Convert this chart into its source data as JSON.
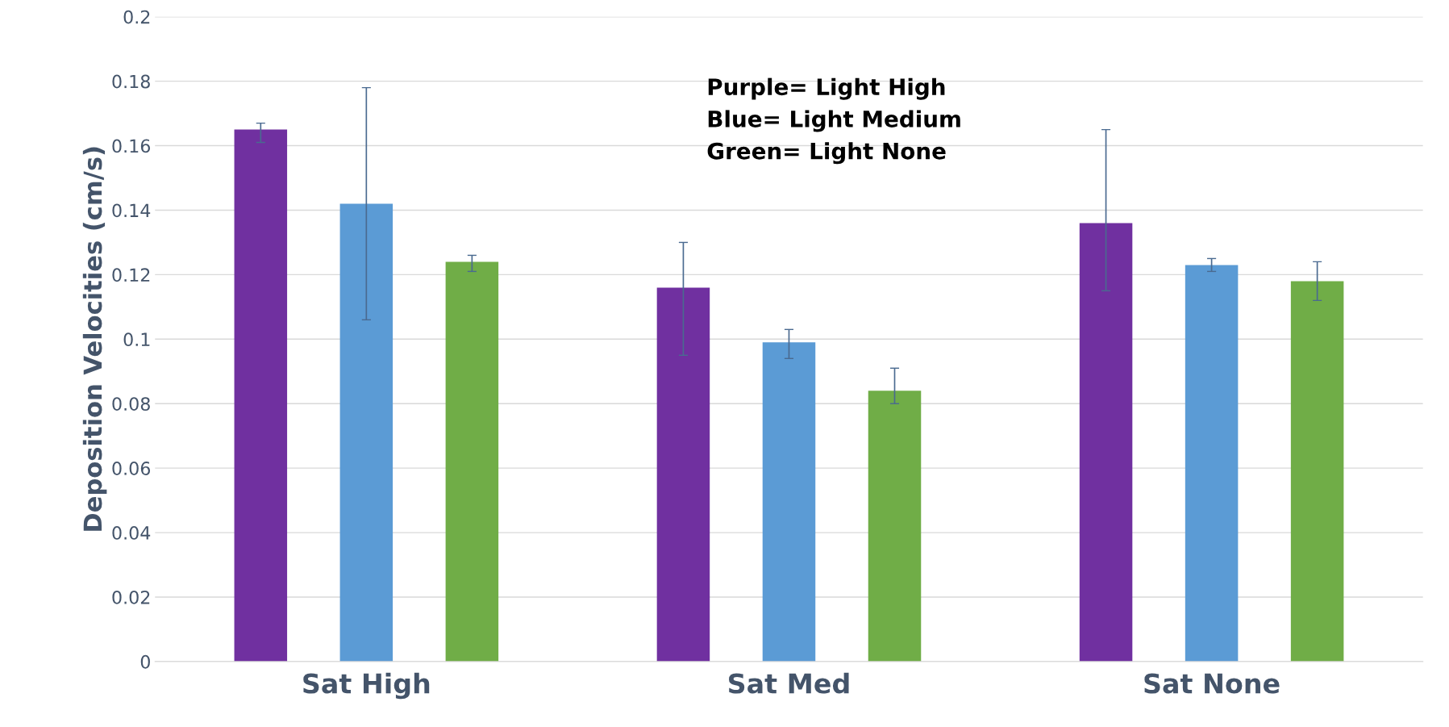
{
  "chart_data": {
    "type": "bar",
    "ylabel": "Deposition Velocities (cm/s)",
    "categories": [
      "Sat High",
      "Sat Med",
      "Sat None"
    ],
    "series": [
      {
        "color": "#7030a0",
        "values": [
          0.165,
          0.116,
          0.136
        ],
        "errors": [
          [
            0.161,
            0.167
          ],
          [
            0.095,
            0.13
          ],
          [
            0.115,
            0.165
          ]
        ]
      },
      {
        "color": "#5b9bd5",
        "values": [
          0.142,
          0.099,
          0.123
        ],
        "errors": [
          [
            0.106,
            0.178
          ],
          [
            0.094,
            0.103
          ],
          [
            0.121,
            0.125
          ]
        ]
      },
      {
        "color": "#70ad47",
        "values": [
          0.124,
          0.084,
          0.118
        ],
        "errors": [
          [
            0.121,
            0.126
          ],
          [
            0.08,
            0.091
          ],
          [
            0.112,
            0.124
          ]
        ]
      }
    ],
    "ylim": [
      0,
      0.2
    ],
    "yticks": [
      0,
      {
        "value": 0.02,
        "label": "0.02"
      },
      {
        "value": 0.04,
        "label": "0.04"
      },
      {
        "value": 0.06,
        "label": "0.06"
      },
      {
        "value": 0.08,
        "label": "0.08"
      },
      {
        "value": 0.1,
        "label": "0.1"
      },
      {
        "value": 0.12,
        "label": "0.12"
      },
      {
        "value": 0.14,
        "label": "0.14"
      },
      {
        "value": 0.16,
        "label": "0.16"
      },
      {
        "value": 0.18,
        "label": "0.18"
      },
      {
        "value": 0.2,
        "label": "0.2"
      }
    ],
    "grid": "y",
    "legend": false,
    "annotations": [
      "Purple= Light High\nBlue= Light Medium\nGreen= Light None"
    ]
  }
}
